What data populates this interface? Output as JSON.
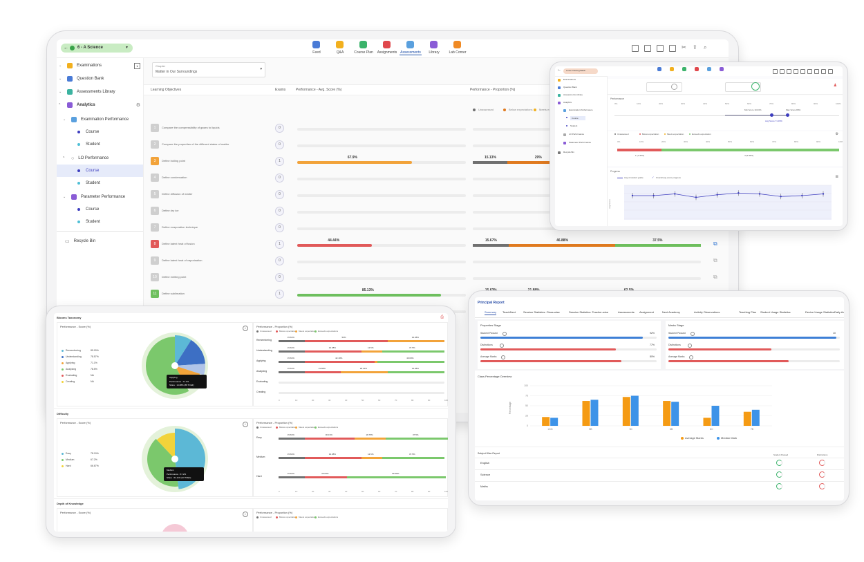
{
  "main": {
    "class_selector": "6 - A Science",
    "nav": [
      "Feed",
      "Q&A",
      "Course Plan",
      "Assignments",
      "Assessments",
      "Library",
      "Lab Corner"
    ],
    "nav_colors": [
      "#4a7bd6",
      "#f2b01e",
      "#3bb36b",
      "#e0474c",
      "#5aa0de",
      "#8a5cd6",
      "#f08a24"
    ],
    "active_nav": "Assessments",
    "sidebar": {
      "examinations": "Examinations",
      "question_bank": "Question Bank",
      "assessments_library": "Assessments Library",
      "analytics": "Analytics",
      "examination_performance": "Examination Performance",
      "course": "Course",
      "student": "Student",
      "lo_performance": "LO Performance",
      "parameter_performance": "Parameter Performance",
      "recycle_bin": "Recycle Bin"
    },
    "chapter_label": "Chapter",
    "chapter_value": "Matter in Our Surroundings",
    "col_lo": "Learning Objectives",
    "col_exams": "Exams",
    "col_avg": "Performance - Avg. Score (%)",
    "col_prop": "Performance - Proportion (%)",
    "legend": [
      "Unassessed",
      "Below expectations",
      "Meets expectations"
    ],
    "rows": [
      {
        "num": "1",
        "text": "Compare the compressibility of gases to liquids",
        "exams": "0",
        "score": null,
        "color": "#cfcfcf"
      },
      {
        "num": "2",
        "text": "Compare the properties of the different states of matter",
        "exams": "0",
        "score": null,
        "color": "#cfcfcf"
      },
      {
        "num": "3",
        "text": "Define boiling point",
        "exams": "1",
        "score": 67.9,
        "score_label": "67.9%",
        "color": "#f2a33a",
        "prop": [
          15.13,
          29,
          55.87
        ],
        "prop_labels": [
          "15.13%",
          "29%",
          ""
        ]
      },
      {
        "num": "4",
        "text": "Define condensation",
        "exams": "0",
        "score": null,
        "color": "#cfcfcf"
      },
      {
        "num": "5",
        "text": "Define diffusion of matter",
        "exams": "0",
        "score": null,
        "color": "#cfcfcf"
      },
      {
        "num": "6",
        "text": "Define dry ice",
        "exams": "0",
        "score": null,
        "color": "#cfcfcf"
      },
      {
        "num": "7",
        "text": "Define evaporation technique",
        "exams": "0",
        "score": null,
        "color": "#cfcfcf"
      },
      {
        "num": "8",
        "text": "Define latent heat of fusion",
        "exams": "1",
        "score": 44.44,
        "score_label": "44.44%",
        "color": "#e15a5a",
        "prop": [
          15.67,
          46.88,
          37.5
        ],
        "prop_labels": [
          "15.67%",
          "46.88%",
          "37.5%"
        ]
      },
      {
        "num": "9",
        "text": "Define latent heat of vaporisation",
        "exams": "0",
        "score": null,
        "color": "#cfcfcf"
      },
      {
        "num": "10",
        "text": "Define melting point",
        "exams": "0",
        "score": null,
        "color": "#cfcfcf"
      },
      {
        "num": "11",
        "text": "Define sublimation",
        "exams": "1",
        "score": 85.13,
        "score_label": "85.13%",
        "color": "#6ebf5e",
        "prop": [
          15.63,
          21.88,
          62.5
        ],
        "prop_labels": [
          "15.63%",
          "21.88%",
          "62.5%"
        ]
      },
      {
        "num": "12",
        "text": "Describe different states",
        "exams": "0",
        "score": null,
        "color": "#cfcfcf"
      }
    ]
  },
  "topright": {
    "selector": "Lower Training Batch",
    "sidebar": [
      "Examinations",
      "Question Bank",
      "Assessments Library",
      "Analytics",
      "Examination Performance",
      "Course",
      "Student",
      "LO Performance",
      "Parameter Performance",
      "Recycle Bin"
    ],
    "performance_label": "Performance",
    "min_score": "Min Score 10.03%",
    "max_score": "Max Score 89%",
    "avg_score": "Avg Score 71.33%",
    "legend": [
      "Unassessed",
      "Below expectation",
      "Meets expectation",
      "Exceeds expectation"
    ],
    "progress_label": "Progress",
    "progress_legend": [
      "Avg of student grade",
      "Overall avg exam progress"
    ],
    "ylabel": "Avg Score",
    "tick_pct": [
      "0%",
      "10%",
      "20%",
      "30%",
      "40%",
      "50%",
      "60%",
      "70%",
      "80%",
      "90%",
      "100%"
    ],
    "bar_labels": [
      "1 (1.49%)",
      "4 (5.95%)"
    ],
    "line": [
      68,
      68,
      70,
      66,
      69,
      71,
      70,
      67,
      68,
      70
    ]
  },
  "bottomleft": {
    "blooms_title": "Blooms Taxonomy",
    "score_title": "Performance - Score (%)",
    "prop_title": "Performance - Proportion (%)",
    "legend": [
      "Unassessed",
      "Below expectations",
      "Meets expectations",
      "Exceeds expectations"
    ],
    "blooms": [
      {
        "name": "Remembering",
        "score": "85.00%",
        "color": "#5cb8d6"
      },
      {
        "name": "Understanding",
        "score": "78.57%",
        "color": "#3d6fc4"
      },
      {
        "name": "Applying",
        "score": "71.1%",
        "color": "#f2a33a"
      },
      {
        "name": "Analyzing",
        "score": "78.5%",
        "color": "#7bc86c"
      },
      {
        "name": "Evaluating",
        "score": "NA",
        "color": "#e15a5a"
      },
      {
        "name": "Creating",
        "score": "NA",
        "color": "#f2d33a"
      }
    ],
    "blooms_rows": [
      {
        "name": "Remembering",
        "labels": [
          "15.63%",
          "50%",
          "34.38%"
        ],
        "segs": [
          15.63,
          50,
          34.38
        ]
      },
      {
        "name": "Understanding",
        "labels": [
          "15.63%",
          "34.38%",
          "12.5%",
          "37.5%"
        ],
        "segs": [
          15.63,
          34.38,
          12.5,
          37.5
        ]
      },
      {
        "name": "Applying",
        "labels": [
          "15.63%",
          "42.19%",
          "40.63%"
        ],
        "segs": [
          15.63,
          42.19,
          1.56,
          40.63
        ]
      },
      {
        "name": "Analyzing",
        "labels": [
          "15.63%",
          "21.88%",
          "28.13%",
          "34.38%"
        ],
        "segs": [
          15.63,
          21.88,
          28.13,
          34.38
        ]
      },
      {
        "name": "Evaluating",
        "labels": [],
        "segs": []
      },
      {
        "name": "Creating",
        "labels": [],
        "segs": []
      }
    ],
    "tooltip1": {
      "title": "Applying",
      "perf": "Performance : 71.1%",
      "share": "Share : 14.88% (88 TOEF)"
    },
    "axis": [
      "0",
      "10",
      "20",
      "30",
      "40",
      "50",
      "60",
      "70",
      "80",
      "90",
      "100"
    ],
    "difficulty_title": "Difficulty",
    "difficulty": [
      {
        "name": "Easy",
        "score": "78.19%",
        "color": "#5cb8d6"
      },
      {
        "name": "Medium",
        "score": "67.2%",
        "color": "#7bc86c"
      },
      {
        "name": "Hard",
        "score": "66.67%",
        "color": "#f2d33a"
      }
    ],
    "difficulty_rows": [
      {
        "name": "Easy",
        "labels": [
          "15.63%",
          "30.19%",
          "18.75%",
          "37.5%"
        ],
        "segs": [
          15.63,
          30.19,
          18.75,
          37.5
        ]
      },
      {
        "name": "Medium",
        "labels": [
          "15.63%",
          "34.38%",
          "12.5%",
          "37.5%"
        ],
        "segs": [
          15.63,
          34.38,
          12.5,
          37.5
        ]
      },
      {
        "name": "Hard",
        "labels": [
          "15.63%",
          "25.63%",
          "59.38%"
        ],
        "segs": [
          15.63,
          25.63,
          0,
          59.38
        ]
      }
    ],
    "tooltip2": {
      "title": "Medium",
      "perf": "Performance : 67.2%",
      "share": "Share : 61.11% (33 TOEF)"
    },
    "dok_title": "Depth of Knowledge"
  },
  "bottomright": {
    "title": "Principal Report",
    "tabs": [
      "Summary",
      "TeachNext",
      "Session Statistics: Class-wise",
      "Session Statistics: Teacher-wise",
      "Assessments",
      "Assignment",
      "Next Academy",
      "Activity Observations",
      "Teaching Plan",
      "Student Usage Statistics",
      "Device Usage Statistics",
      "Daily Act"
    ],
    "card1_title": "Properties Stage",
    "card2_title": "Marks Stage",
    "stats1": [
      {
        "label": "Student Passed",
        "value": "92%",
        "pct": 92,
        "color": "#3d7fd6"
      },
      {
        "label": "Distinctions",
        "value": "77%",
        "pct": 77,
        "color": "#e15a5a"
      },
      {
        "label": "Average Marks",
        "value": "80%",
        "pct": 80,
        "color": "#e15a5a"
      }
    ],
    "stats2": [
      {
        "label": "Student Passed",
        "value": "10",
        "pct": 98,
        "color": "#3d7fd6"
      },
      {
        "label": "Distinctions",
        "value": "",
        "pct": 60,
        "color": "#e15a5a"
      },
      {
        "label": "Average Marks",
        "value": "",
        "pct": 70,
        "color": "#e15a5a"
      }
    ],
    "class_overview": "Class Percentage Overview",
    "chart_data": {
      "type": "bar",
      "categories": [
        "LKG",
        "5B",
        "5C",
        "6B",
        "6C",
        "7B"
      ],
      "series": [
        {
          "name": "Average Marks",
          "values": [
            22,
            62,
            72,
            62,
            20,
            35
          ]
        },
        {
          "name": "Median Mark",
          "values": [
            20,
            65,
            75,
            60,
            50,
            40
          ]
        }
      ],
      "ylabel": "Percentage",
      "ylim": [
        0,
        100
      ],
      "colors": [
        "#f59b14",
        "#3d93e8"
      ]
    },
    "subject_title": "Subject Wise Report",
    "col1": "Student Passed",
    "col2": "Distinctions",
    "subjects": [
      "English",
      "Science",
      "Maths"
    ]
  }
}
